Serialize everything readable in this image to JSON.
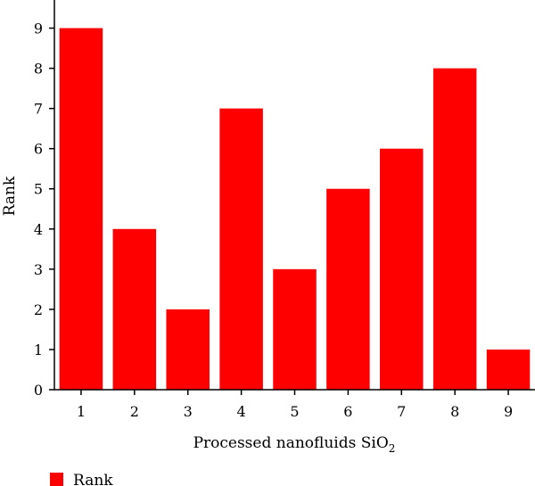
{
  "chart_data": {
    "type": "bar",
    "categories": [
      "1",
      "2",
      "3",
      "4",
      "5",
      "6",
      "7",
      "8",
      "9"
    ],
    "series": [
      {
        "name": "Rank",
        "values": [
          9,
          4,
          2,
          7,
          3,
          5,
          6,
          8,
          1
        ]
      }
    ],
    "title": "",
    "xlabel": "Processed nanofluids SiO",
    "xlabel_subscript": "2",
    "ylabel": "Rank",
    "ylim": [
      0,
      9.7
    ],
    "yticks": [
      0,
      1,
      2,
      3,
      4,
      5,
      6,
      7,
      8,
      9
    ],
    "grid": false,
    "legend": "bottom-left",
    "colors": {
      "bar": "#ff0000",
      "axis": "#000000"
    }
  }
}
